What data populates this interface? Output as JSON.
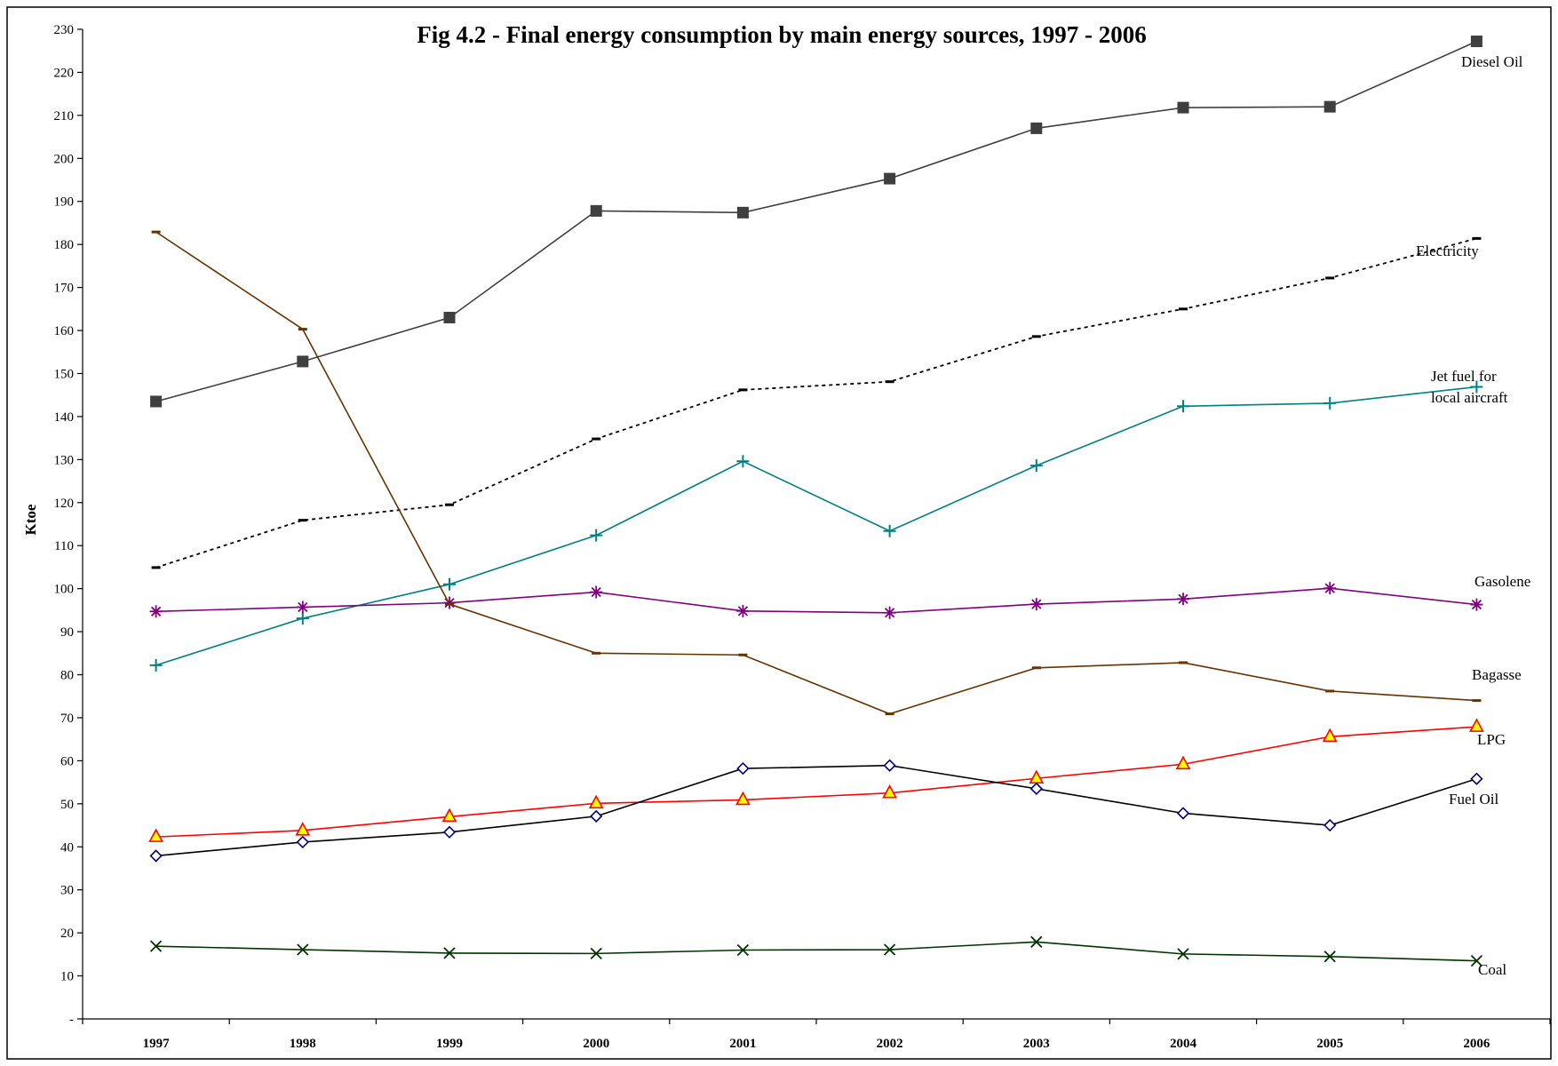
{
  "chart_data": {
    "type": "line",
    "title": "Fig 4.2 - Final energy consumption by main energy sources, 1997 - 2006",
    "ylabel": "Ktoe",
    "xlabel": "",
    "ylim": [
      0,
      230
    ],
    "yticks": [
      "-",
      "10",
      "20",
      "30",
      "40",
      "50",
      "60",
      "70",
      "80",
      "90",
      "100",
      "110",
      "120",
      "130",
      "140",
      "150",
      "160",
      "170",
      "180",
      "190",
      "200",
      "210",
      "220",
      "230"
    ],
    "categories": [
      "1997",
      "1998",
      "1999",
      "2000",
      "2001",
      "2002",
      "2003",
      "2004",
      "2005",
      "2006"
    ],
    "grid": false,
    "legend": "inline labels at line ends",
    "series": [
      {
        "name": "Diesel Oil",
        "label_lines": [
          "Diesel Oil"
        ],
        "color": "#404040",
        "marker": "square",
        "values": [
          143.5,
          152.8,
          163.0,
          187.8,
          187.4,
          195.3,
          207.0,
          211.8,
          212.0,
          227.2
        ]
      },
      {
        "name": "Electricity",
        "label_lines": [
          "Electricity"
        ],
        "color": "#000000",
        "marker": "dash",
        "dashed": true,
        "values": [
          104.9,
          115.9,
          119.5,
          134.8,
          146.2,
          148.1,
          158.6,
          165.0,
          172.2,
          181.4
        ]
      },
      {
        "name": "Jet fuel for local aircraft",
        "label_lines": [
          "Jet fuel for",
          "local aircraft"
        ],
        "color": "#008080",
        "marker": "plus",
        "values": [
          82.2,
          93.1,
          101.0,
          112.4,
          129.6,
          113.4,
          128.6,
          142.4,
          143.1,
          146.9
        ]
      },
      {
        "name": "Gasolene",
        "label_lines": [
          "Gasolene"
        ],
        "color": "#800080",
        "marker": "asterisk",
        "values": [
          94.7,
          95.7,
          96.7,
          99.2,
          94.8,
          94.4,
          96.4,
          97.6,
          100.1,
          96.3
        ]
      },
      {
        "name": "Bagasse",
        "label_lines": [
          "Bagasse"
        ],
        "color": "#663300",
        "marker": "dash",
        "values": [
          182.9,
          160.3,
          96.4,
          85.0,
          84.6,
          70.9,
          81.6,
          82.8,
          76.2,
          74.0
        ]
      },
      {
        "name": "LPG",
        "label_lines": [
          "LPG"
        ],
        "color": "#ff0000",
        "marker": "triangle",
        "values": [
          42.3,
          43.8,
          47.0,
          50.1,
          50.9,
          52.5,
          55.9,
          59.2,
          65.6,
          67.9
        ]
      },
      {
        "name": "Fuel Oil",
        "label_lines": [
          "Fuel Oil"
        ],
        "color": "#000000",
        "marker": "diamond",
        "values": [
          37.9,
          41.1,
          43.4,
          47.1,
          58.2,
          58.9,
          53.5,
          47.8,
          45.0,
          55.8
        ]
      },
      {
        "name": "Coal",
        "label_lines": [
          "Coal"
        ],
        "color": "#003300",
        "marker": "x",
        "values": [
          16.9,
          16.1,
          15.3,
          15.2,
          16.0,
          16.1,
          17.9,
          15.1,
          14.5,
          13.5
        ]
      }
    ]
  }
}
